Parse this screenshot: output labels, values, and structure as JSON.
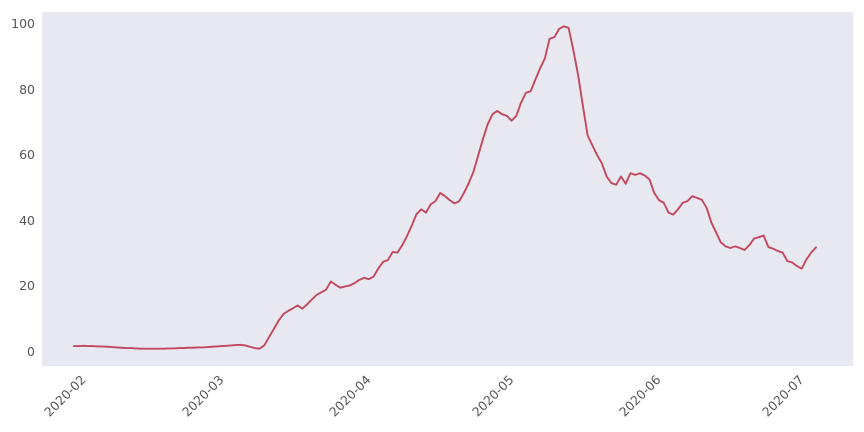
{
  "figure": {
    "background_color": "#ffffff",
    "plot_background_color": "#e8e8f1",
    "tick_label_color": "#565656"
  },
  "chart_data": {
    "type": "line",
    "title": "",
    "xlabel": "",
    "ylabel": "",
    "grid": false,
    "legend": false,
    "line_color": "#c3485f",
    "line_width": 1.9,
    "x_start_date": "2020-02-01",
    "x_end_date": "2020-07-06",
    "x_frequency": "daily",
    "ylim": [
      -4.3,
      103.7
    ],
    "yticks": [
      {
        "label": "0",
        "value": 0
      },
      {
        "label": "20",
        "value": 20
      },
      {
        "label": "40",
        "value": 40
      },
      {
        "label": "60",
        "value": 60
      },
      {
        "label": "80",
        "value": 80
      },
      {
        "label": "100",
        "value": 100
      }
    ],
    "xticks": [
      {
        "label": "2020-02",
        "day_index": 0
      },
      {
        "label": "2020-03",
        "day_index": 29
      },
      {
        "label": "2020-04",
        "day_index": 60
      },
      {
        "label": "2020-05",
        "day_index": 90
      },
      {
        "label": "2020-06",
        "day_index": 121
      },
      {
        "label": "2020-07",
        "day_index": 151
      }
    ],
    "values": [
      1.8,
      1.8,
      1.9,
      1.8,
      1.8,
      1.7,
      1.7,
      1.6,
      1.5,
      1.4,
      1.3,
      1.2,
      1.2,
      1.1,
      1,
      1,
      1,
      1,
      1,
      1,
      1.1,
      1.1,
      1.2,
      1.2,
      1.3,
      1.3,
      1.4,
      1.4,
      1.5,
      1.6,
      1.7,
      1.8,
      1.9,
      2,
      2.1,
      2.2,
      2,
      1.6,
      1.2,
      1,
      2,
      4.5,
      7,
      9.5,
      11.5,
      12.5,
      13.3,
      14.2,
      13.2,
      14.5,
      16,
      17.4,
      18.2,
      19,
      21.5,
      20.5,
      19.6,
      20,
      20.3,
      21,
      22,
      22.6,
      22.2,
      23,
      25.5,
      27.5,
      28,
      30.5,
      30.3,
      32.5,
      35.3,
      38.5,
      42,
      43.5,
      42.5,
      45,
      46,
      48.5,
      47.5,
      46.3,
      45.3,
      46,
      48.5,
      51.5,
      55,
      60,
      65,
      69.5,
      72.5,
      73.5,
      72.5,
      72,
      70.5,
      72,
      76,
      79,
      79.5,
      83,
      86.5,
      89.5,
      95.5,
      96,
      98.5,
      99.3,
      98.8,
      92,
      84.4,
      75,
      66,
      63,
      60,
      57.5,
      53.5,
      51.5,
      51,
      53.5,
      51.3,
      54.5,
      54,
      54.5,
      53.8,
      52.6,
      48.5,
      46.3,
      45.5,
      42.5,
      41.9,
      43.5,
      45.5,
      46,
      47.5,
      47,
      46.4,
      44,
      39.5,
      36.5,
      33.4,
      32.2,
      31.7,
      32.2,
      31.7,
      31.1,
      32.6,
      34.6,
      35,
      35.5,
      32,
      31.5,
      30.8,
      30.3,
      27.7,
      27.3,
      26.2,
      25.4,
      28.2,
      30.3,
      31.9
    ]
  }
}
